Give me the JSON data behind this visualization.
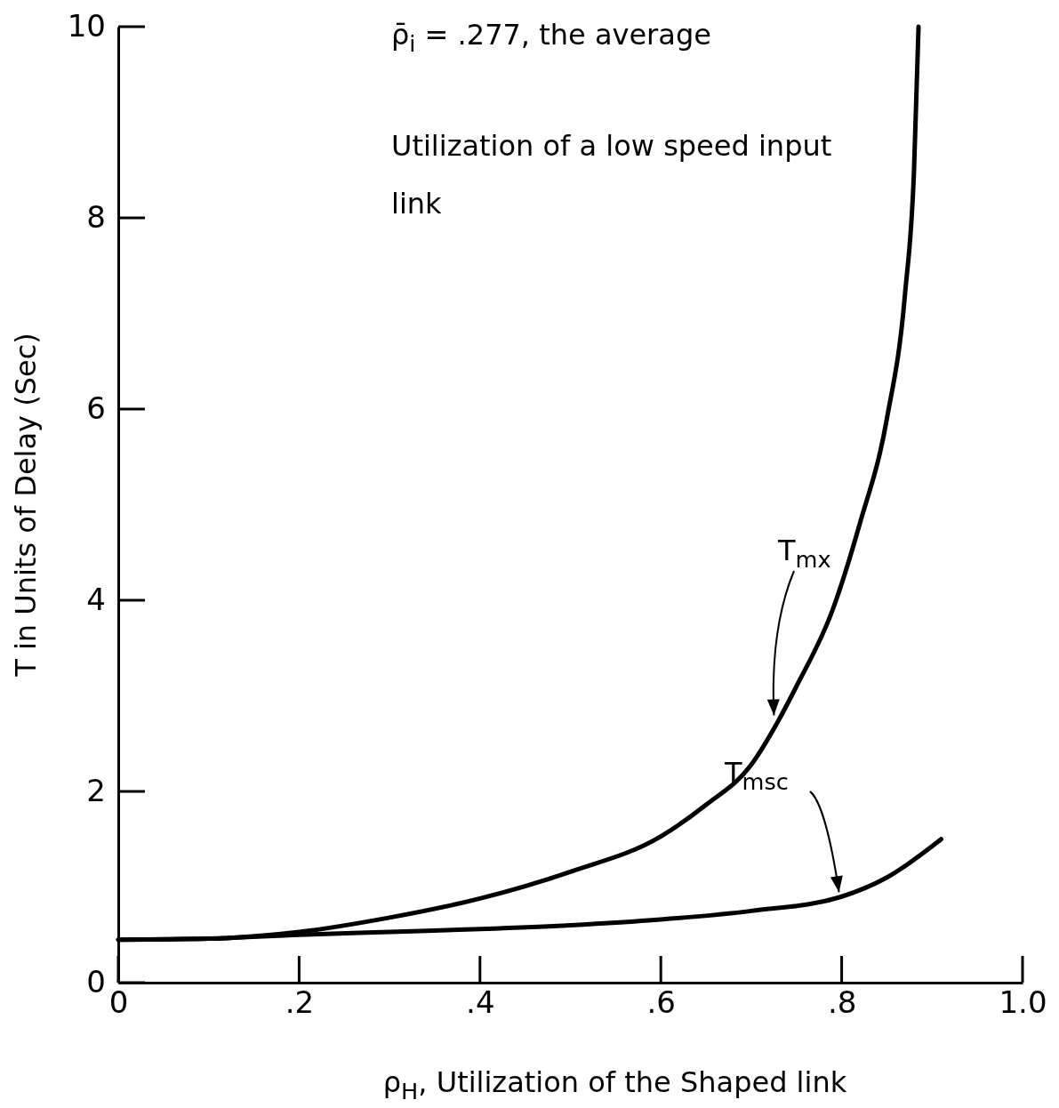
{
  "chart_data": {
    "type": "line",
    "xlabel": "ρ$_{H}$, Utilization of the Shaped link",
    "ylabel": "T in Units of Delay (Sec)",
    "xlim": [
      0,
      1.0
    ],
    "ylim": [
      0,
      10
    ],
    "xticks": [
      {
        "value": 0,
        "label": "0"
      },
      {
        "value": 0.2,
        "label": ".2"
      },
      {
        "value": 0.4,
        "label": ".4"
      },
      {
        "value": 0.6,
        "label": ".6"
      },
      {
        "value": 0.8,
        "label": ".8"
      },
      {
        "value": 1.0,
        "label": "1.0"
      }
    ],
    "yticks": [
      0,
      2,
      4,
      6,
      8,
      10
    ],
    "grid": false,
    "marker": "none",
    "line_style": "solid",
    "annotations": [
      "ρ̄$_{i}$ = .277, the average",
      "Utilization of a low speed input link"
    ],
    "series": [
      {
        "name": "T$_{mx}$",
        "color": "#000000",
        "x": [
          0,
          0.1,
          0.2,
          0.3,
          0.4,
          0.5,
          0.6,
          0.65,
          0.7,
          0.73,
          0.75,
          0.79,
          0.82,
          0.85,
          0.87,
          0.88,
          0.885
        ],
        "values": [
          0.45,
          0.46,
          0.53,
          0.68,
          0.88,
          1.16,
          1.53,
          1.86,
          2.28,
          2.74,
          3.1,
          3.9,
          4.8,
          5.9,
          7.2,
          8.5,
          10
        ]
      },
      {
        "name": "T$_{msc}$",
        "color": "#000000",
        "x": [
          0,
          0.1,
          0.2,
          0.3,
          0.4,
          0.5,
          0.6,
          0.7,
          0.8,
          0.85,
          0.91
        ],
        "values": [
          0.45,
          0.46,
          0.5,
          0.53,
          0.56,
          0.6,
          0.66,
          0.75,
          0.9,
          1.1,
          1.5
        ]
      }
    ]
  }
}
